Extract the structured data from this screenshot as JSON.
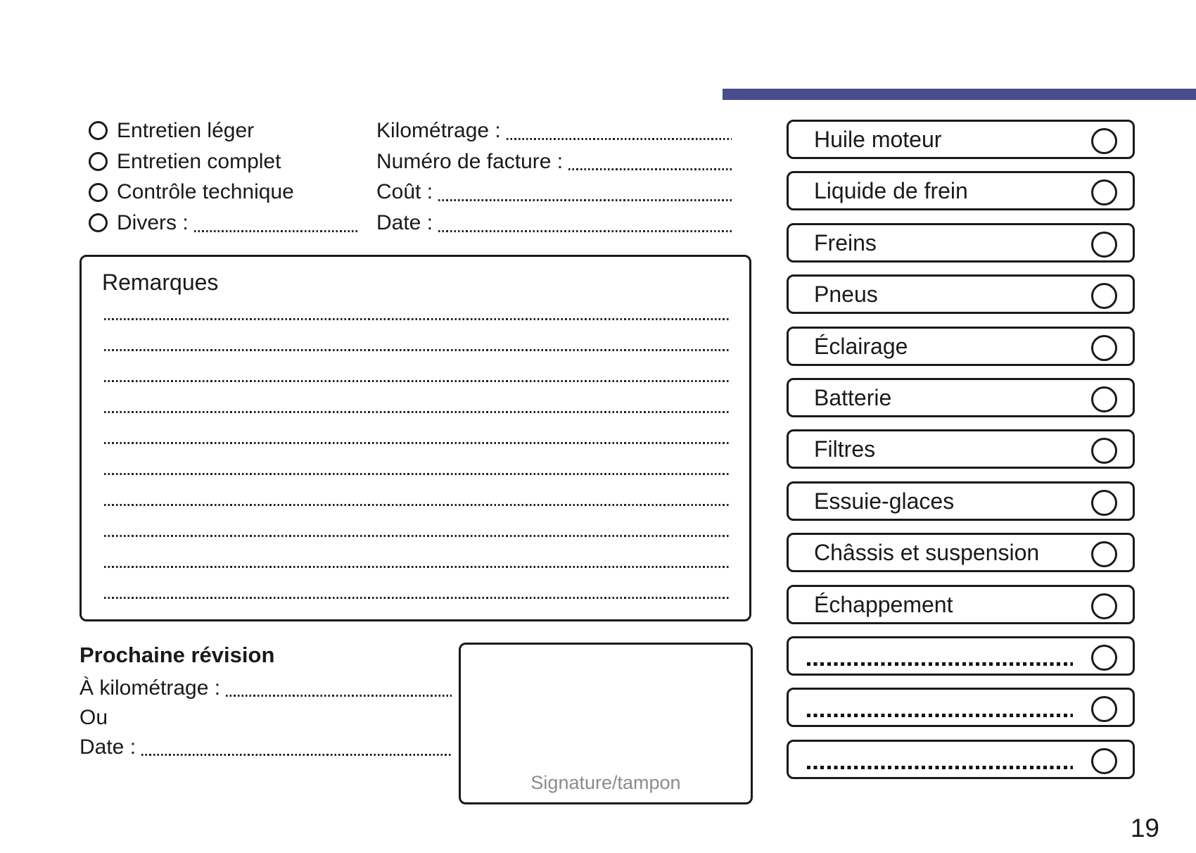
{
  "page": {
    "number": "19"
  },
  "colors": {
    "accent_bar": "#474D8D"
  },
  "service_types": {
    "items": [
      {
        "label": "Entretien léger",
        "has_leader": false
      },
      {
        "label": "Entretien complet",
        "has_leader": false
      },
      {
        "label": "Contrôle technique",
        "has_leader": false
      },
      {
        "label": "Divers :",
        "has_leader": true
      }
    ]
  },
  "invoice_fields": {
    "items": [
      {
        "label": "Kilométrage :"
      },
      {
        "label": "Numéro de facture :"
      },
      {
        "label": "Coût :"
      },
      {
        "label": "Date :"
      }
    ]
  },
  "remarks": {
    "title": "Remarques",
    "line_count": 10
  },
  "next_service": {
    "title": "Prochaine révision",
    "rows": [
      {
        "label": "À kilométrage :",
        "has_leader": true
      },
      {
        "label": "Ou",
        "has_leader": false
      },
      {
        "label": "Date :",
        "has_leader": true
      }
    ]
  },
  "signature": {
    "label": "Signature/tampon"
  },
  "checklist": {
    "items": [
      {
        "label": "Huile moteur",
        "blank": false
      },
      {
        "label": "Liquide de frein",
        "blank": false
      },
      {
        "label": "Freins",
        "blank": false
      },
      {
        "label": "Pneus",
        "blank": false
      },
      {
        "label": "Éclairage",
        "blank": false
      },
      {
        "label": "Batterie",
        "blank": false
      },
      {
        "label": "Filtres",
        "blank": false
      },
      {
        "label": "Essuie-glaces",
        "blank": false
      },
      {
        "label": "Châssis et suspension",
        "blank": false
      },
      {
        "label": "Échappement",
        "blank": false
      },
      {
        "label": "",
        "blank": true
      },
      {
        "label": "",
        "blank": true
      },
      {
        "label": "",
        "blank": true
      }
    ]
  }
}
